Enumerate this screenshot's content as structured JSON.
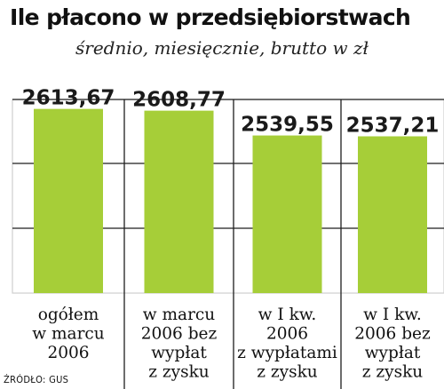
{
  "title": "Ile płacono w przedsiębiorstwach",
  "subtitle": "średnio, miesięcznie, brutto w zł",
  "source": "ŹRÓDŁO: GUS",
  "colors": {
    "bar": "#a6ce38",
    "plot_background": "#ffffff",
    "frame": "#cfcfcf",
    "gridline": "#1e1e1e",
    "divider": "#1e1e1e"
  },
  "chart_data": {
    "type": "bar",
    "title": "Ile płacono w przedsiębiorstwach",
    "subtitle": "średnio, miesięcznie, brutto w zł",
    "categories": [
      [
        "ogółem",
        "w marcu",
        "2006"
      ],
      [
        "w marcu",
        "2006 bez",
        "wypłat",
        "z zysku"
      ],
      [
        "w I kw.",
        "2006",
        "z wypłatami",
        "z zysku"
      ],
      [
        "w I kw.",
        "2006 bez",
        "wypłat",
        "z zysku"
      ]
    ],
    "values": [
      2613.67,
      2608.77,
      2539.55,
      2537.21
    ],
    "value_labels": [
      "2613,67",
      "2608,77",
      "2539,55",
      "2537,21"
    ],
    "xlabel": "",
    "ylabel": "",
    "ylim": [
      2100,
      2640
    ],
    "grid": true,
    "legend": "none"
  }
}
